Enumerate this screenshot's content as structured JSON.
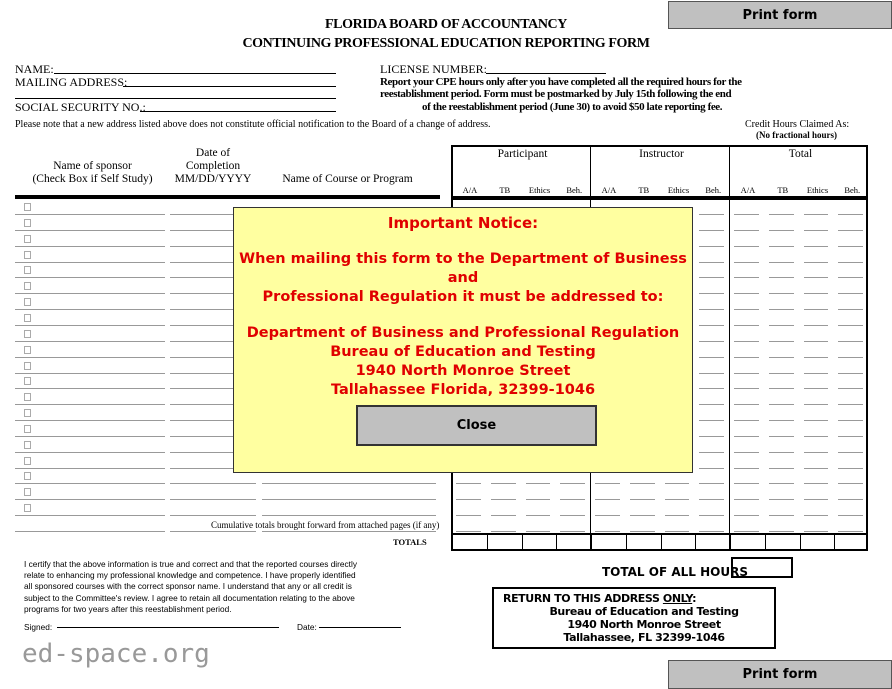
{
  "print_button": "Print form",
  "title_line1": "FLORIDA BOARD OF ACCOUNTANCY",
  "title_line2": "CONTINUING PROFESSIONAL EDUCATION REPORTING FORM",
  "fields": {
    "name": "NAME:",
    "mailing_address": "MAILING ADDRESS:",
    "ssn": "SOCIAL SECURITY NO.:",
    "license": "LICENSE  NUMBER:"
  },
  "notice_lines": [
    "Report your CPE hours only after you have completed all the required hours for the",
    "reestablishment period.  Form must be postmarked by July 15th following the end",
    "of the reestablishment period (June 30) to avoid $50 late reporting fee."
  ],
  "address_note": "Please note that a new address listed above does not constitute official notification to the Board of a change of address.",
  "credit_hours": "Credit Hours Claimed As:",
  "no_fractional": "(No fractional hours)",
  "columns": {
    "sponsor": [
      "Name of sponsor",
      "(Check Box if Self Study)"
    ],
    "date": [
      "Date of",
      "Completion",
      "MM/DD/YYYY"
    ],
    "course": "Name of Course or Program"
  },
  "groups": [
    "Participant",
    "Instructor",
    "Total"
  ],
  "subcols": [
    "A/A",
    "TB",
    "Ethics",
    "Beh."
  ],
  "cumulative": "Cumulative totals brought forward from attached pages (if any)",
  "totals": "TOTALS",
  "total_all_hours": "TOTAL OF ALL HOURS",
  "certify": [
    "I certify that the above information is true and correct and that the reported courses directly",
    "relate to enhancing my professional knowledge and competence.  I have properly identified",
    "all sponsored courses with the correct sponsor name.  I understand that any or all credit is",
    "subject to the Committee's review.  I agree to retain all documentation relating to the above",
    "programs for two years after this reestablishment period."
  ],
  "signed": "Signed:",
  "date": "Date:",
  "return": {
    "prefix": "RETURN TO THIS ADDRESS ",
    "only": "ONLY",
    "suffix": ":",
    "lines": [
      "Bureau of Education and Testing",
      "1940 North Monroe Street",
      "Tallahassee, FL 32399-1046"
    ]
  },
  "watermark": "ed-space.org",
  "modal": {
    "heading": "Important Notice:",
    "line1": "When mailing this form to the Department of Business and",
    "line2": "Professional Regulation it must be addressed to:",
    "addr": [
      "Department of Business and Professional Regulation",
      "Bureau of Education and Testing",
      "1940 North Monroe Street",
      "Tallahassee Florida, 32399-1046"
    ],
    "close": "Close",
    "bg": "#ffffa0",
    "text_color": "#e00000"
  }
}
